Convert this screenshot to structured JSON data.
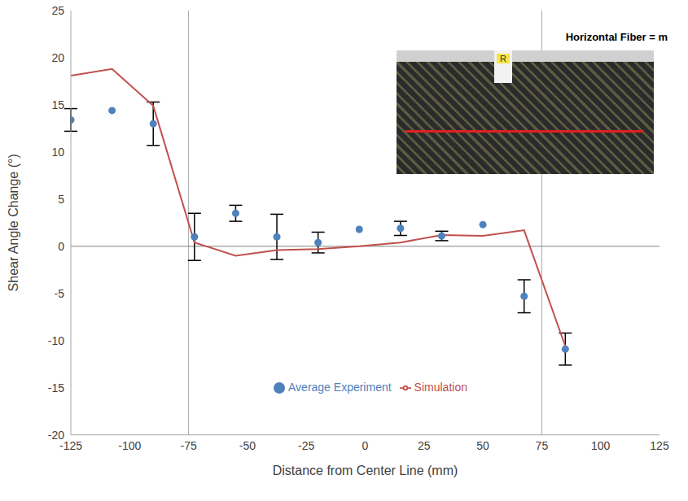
{
  "chart_data": {
    "type": "scatter",
    "annotations": [
      "Horizontal Fiber = m",
      "R"
    ],
    "x_label": "Distance from Center Line (mm)",
    "y_label": "Shear Angle Change (°)",
    "xlim": [
      -125,
      125
    ],
    "xticks": [
      -125,
      -100,
      -75,
      -50,
      -25,
      0,
      25,
      50,
      75,
      100,
      125
    ],
    "ylim": [
      -20,
      25
    ],
    "yticks": [
      -20,
      -15,
      -10,
      -5,
      0,
      5,
      10,
      15,
      20,
      25
    ],
    "grid": false,
    "legend": "lower center",
    "reference_lines": {
      "x": [
        -75,
        75
      ],
      "y": [
        0
      ]
    },
    "series": [
      {
        "name": "Average Experiment",
        "type": "scatter",
        "color": "#4f81bd",
        "marker": "circle",
        "x": [
          -125,
          -107.5,
          -90,
          -72.5,
          -55,
          -37.5,
          -20,
          -2.5,
          15,
          32.5,
          50,
          67.5,
          85
        ],
        "values": [
          13.4,
          14.4,
          13.0,
          1.0,
          3.5,
          1.0,
          0.4,
          1.8,
          1.9,
          1.1,
          2.3,
          -5.3,
          -10.9
        ],
        "error": [
          1.2,
          null,
          2.3,
          2.5,
          0.85,
          2.4,
          1.1,
          null,
          0.75,
          0.5,
          null,
          1.75,
          1.7
        ]
      },
      {
        "name": "Simulation",
        "type": "line",
        "color": "#c0504d",
        "marker": "none",
        "line_style": "solid",
        "x": [
          -125,
          -107.5,
          -90,
          -72.5,
          -55,
          -37.5,
          -20,
          -2.5,
          15,
          32.5,
          50,
          67.5,
          85
        ],
        "values": [
          18.1,
          18.8,
          14.9,
          0.4,
          -1.0,
          -0.4,
          -0.3,
          0.0,
          0.4,
          1.2,
          1.1,
          1.7,
          -10.6
        ]
      }
    ]
  }
}
